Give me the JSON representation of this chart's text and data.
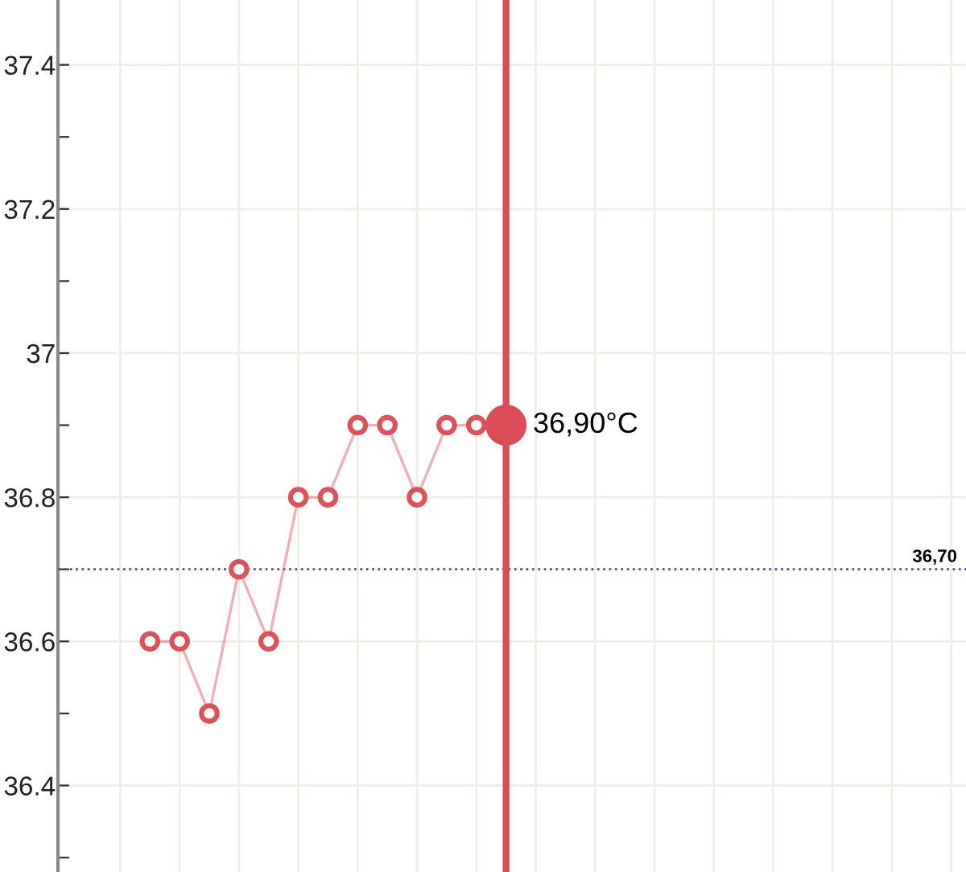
{
  "chart_data": {
    "type": "line",
    "categories": [
      null,
      null,
      null,
      null,
      null,
      null,
      null,
      null,
      null,
      null,
      null,
      null,
      null,
      null,
      null,
      null,
      null,
      null,
      null,
      null,
      null,
      null,
      null,
      null,
      null,
      null,
      null,
      null,
      null,
      null,
      null
    ],
    "series": [
      {
        "color": "#e0505a",
        "marker": "circle",
        "values": [
          null,
          null,
          null,
          36.6,
          36.6,
          36.5,
          36.7,
          36.6,
          36.8,
          36.8,
          36.9,
          36.9,
          36.8,
          36.9,
          36.9,
          null,
          null,
          null,
          null,
          null,
          null,
          null,
          null,
          null,
          null,
          null,
          null,
          null,
          null,
          null,
          null
        ]
      },
      {
        "type": "scatter",
        "color": "#dc4c56",
        "marker": "circle",
        "values": [
          null,
          null,
          null,
          null,
          null,
          null,
          null,
          null,
          null,
          null,
          null,
          null,
          null,
          null,
          null,
          36.9,
          null,
          null,
          null,
          null,
          null,
          null,
          null,
          null,
          null,
          null,
          null,
          null,
          null,
          null,
          null
        ]
      }
    ],
    "ylim": [
      36.28,
      37.49
    ],
    "yticks": [
      {
        "value": 36.3,
        "label": null
      },
      36.4,
      {
        "value": 36.5,
        "label": null
      },
      36.6,
      {
        "value": 36.7,
        "label": null
      },
      36.8,
      {
        "value": 36.9,
        "label": null
      },
      37,
      {
        "value": 37.1,
        "label": null
      },
      37.2,
      {
        "value": 37.3,
        "label": null
      },
      37.4
    ],
    "tick_labels": "y",
    "grid": true,
    "ref_lines": [
      {
        "axis": "y",
        "value": 36.7,
        "label": "36,70",
        "color": "#4a4aa8",
        "line_style": "dotted"
      }
    ],
    "annotations": [
      "36,90°C"
    ]
  }
}
